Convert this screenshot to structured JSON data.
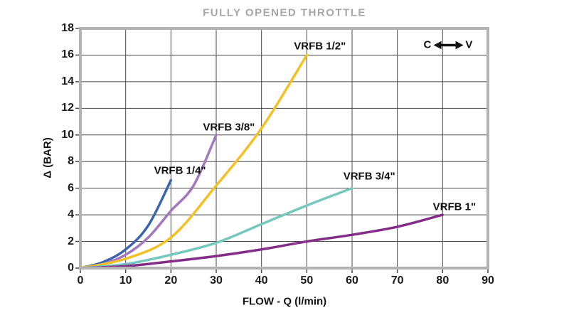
{
  "chart_data": {
    "type": "line",
    "title": "FULLY OPENED THROTTLE",
    "xlabel": "FLOW - Q (l/min)",
    "ylabel": "Δ (BAR)",
    "xlim": [
      0,
      90
    ],
    "ylim": [
      0,
      18
    ],
    "x_ticks": [
      0,
      10,
      20,
      30,
      40,
      50,
      60,
      70,
      80,
      90
    ],
    "y_ticks": [
      0,
      2,
      4,
      6,
      8,
      10,
      12,
      14,
      16,
      18
    ],
    "grid": true,
    "grid_color": "#4a4a4a",
    "frame_color": "#b3b3b3",
    "tick_color": "#4a4a4a",
    "series": [
      {
        "id": "vrfb-quarter",
        "name": "VRFB 1/4\"",
        "color": "#3c63ad",
        "points": [
          [
            0,
            0
          ],
          [
            5,
            0.45
          ],
          [
            10,
            1.4
          ],
          [
            15,
            3.2
          ],
          [
            20,
            6.6
          ]
        ],
        "label_pos": [
          22.0,
          7.3
        ]
      },
      {
        "id": "vrfb-three-eighths",
        "name": "VRFB 3/8\"",
        "color": "#a478bf",
        "points": [
          [
            0,
            0
          ],
          [
            5,
            0.3
          ],
          [
            10,
            1.0
          ],
          [
            15,
            2.3
          ],
          [
            20,
            4.3
          ],
          [
            25,
            6.2
          ],
          [
            30,
            10
          ]
        ],
        "label_pos": [
          32.8,
          10.6
        ]
      },
      {
        "id": "vrfb-half",
        "name": "VRFB 1/2\"",
        "color": "#f2c127",
        "points": [
          [
            0,
            0
          ],
          [
            10,
            0.7
          ],
          [
            20,
            2.3
          ],
          [
            30,
            6.2
          ],
          [
            40,
            10.5
          ],
          [
            50,
            16
          ]
        ],
        "label_pos": [
          52.9,
          16.65
        ]
      },
      {
        "id": "vrfb-three-quarters",
        "name": "VRFB 3/4\"",
        "color": "#74c8bd",
        "points": [
          [
            0,
            0
          ],
          [
            10,
            0.3
          ],
          [
            20,
            1.0
          ],
          [
            30,
            1.9
          ],
          [
            40,
            3.3
          ],
          [
            50,
            4.7
          ],
          [
            60,
            6
          ]
        ],
        "label_pos": [
          63.8,
          6.9
        ]
      },
      {
        "id": "vrfb-one",
        "name": "VRFB 1\"",
        "color": "#842d88",
        "points": [
          [
            0,
            0
          ],
          [
            10,
            0.15
          ],
          [
            20,
            0.5
          ],
          [
            30,
            0.9
          ],
          [
            40,
            1.4
          ],
          [
            50,
            2.0
          ],
          [
            60,
            2.5
          ],
          [
            70,
            3.1
          ],
          [
            80,
            4.0
          ]
        ],
        "label_pos": [
          82.6,
          4.6
        ]
      }
    ],
    "annotation": {
      "left_label": "C",
      "right_label": "V",
      "icon": "double-arrow",
      "pos": [
        81.2,
        16.75
      ]
    }
  }
}
